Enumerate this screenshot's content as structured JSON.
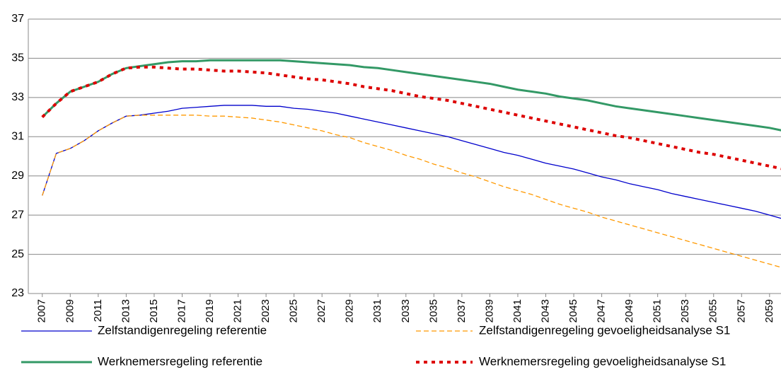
{
  "chart_data": {
    "type": "line",
    "x": [
      2007,
      2008,
      2009,
      2010,
      2011,
      2012,
      2013,
      2014,
      2015,
      2016,
      2017,
      2018,
      2019,
      2020,
      2021,
      2022,
      2023,
      2024,
      2025,
      2026,
      2027,
      2028,
      2029,
      2030,
      2031,
      2032,
      2033,
      2034,
      2035,
      2036,
      2037,
      2038,
      2039,
      2040,
      2041,
      2042,
      2043,
      2044,
      2045,
      2046,
      2047,
      2048,
      2049,
      2050,
      2051,
      2052,
      2053,
      2054,
      2055,
      2056,
      2057,
      2058,
      2059,
      2060
    ],
    "xlim": [
      2006,
      2060
    ],
    "xticks": [
      2007,
      2009,
      2011,
      2013,
      2015,
      2017,
      2019,
      2021,
      2023,
      2025,
      2027,
      2029,
      2031,
      2033,
      2035,
      2037,
      2039,
      2041,
      2043,
      2045,
      2047,
      2049,
      2051,
      2053,
      2055,
      2057,
      2059
    ],
    "ylim": [
      23,
      37
    ],
    "yticks": [
      23,
      25,
      27,
      29,
      31,
      33,
      35,
      37
    ],
    "grid": true,
    "legend": "bottom",
    "series": [
      {
        "name": "Zelfstandigenregeling referentie",
        "color": "#0000cc",
        "style": "solid",
        "values": [
          28.0,
          30.15,
          30.4,
          30.8,
          31.3,
          31.7,
          32.05,
          32.1,
          32.2,
          32.3,
          32.45,
          32.5,
          32.55,
          32.6,
          32.6,
          32.6,
          32.55,
          32.55,
          32.45,
          32.4,
          32.3,
          32.2,
          32.05,
          31.9,
          31.75,
          31.6,
          31.45,
          31.3,
          31.15,
          31.0,
          30.8,
          30.6,
          30.4,
          30.2,
          30.05,
          29.85,
          29.65,
          29.5,
          29.35,
          29.15,
          28.95,
          28.8,
          28.6,
          28.45,
          28.3,
          28.1,
          27.95,
          27.8,
          27.65,
          27.5,
          27.35,
          27.2,
          27.0,
          26.8
        ]
      },
      {
        "name": "Zelfstandigenregeling gevoeligheidsanalyse S1",
        "color": "#ff9900",
        "style": "dashed",
        "values": [
          28.0,
          30.15,
          30.4,
          30.8,
          31.3,
          31.7,
          32.05,
          32.1,
          32.1,
          32.1,
          32.1,
          32.1,
          32.05,
          32.05,
          32.0,
          31.95,
          31.85,
          31.75,
          31.6,
          31.45,
          31.3,
          31.1,
          30.95,
          30.7,
          30.5,
          30.3,
          30.05,
          29.85,
          29.6,
          29.4,
          29.15,
          28.95,
          28.7,
          28.45,
          28.25,
          28.05,
          27.8,
          27.55,
          27.35,
          27.15,
          26.9,
          26.7,
          26.5,
          26.3,
          26.1,
          25.9,
          25.7,
          25.5,
          25.3,
          25.1,
          24.9,
          24.7,
          24.5,
          24.3
        ]
      },
      {
        "name": "Werknemersregeling referentie",
        "color": "#339966",
        "style": "thick",
        "values": [
          32.0,
          32.7,
          33.3,
          33.55,
          33.8,
          34.2,
          34.5,
          34.6,
          34.7,
          34.8,
          34.85,
          34.85,
          34.9,
          34.9,
          34.9,
          34.9,
          34.9,
          34.9,
          34.85,
          34.8,
          34.75,
          34.7,
          34.65,
          34.55,
          34.5,
          34.4,
          34.3,
          34.2,
          34.1,
          34.0,
          33.9,
          33.8,
          33.7,
          33.55,
          33.4,
          33.3,
          33.2,
          33.05,
          32.95,
          32.85,
          32.7,
          32.55,
          32.45,
          32.35,
          32.25,
          32.15,
          32.05,
          31.95,
          31.85,
          31.75,
          31.65,
          31.55,
          31.45,
          31.3
        ]
      },
      {
        "name": "Werknemersregeling gevoeligheidsanalyse S1",
        "color": "#dd0000",
        "style": "dotted",
        "values": [
          32.0,
          32.7,
          33.3,
          33.55,
          33.8,
          34.2,
          34.5,
          34.55,
          34.55,
          34.5,
          34.45,
          34.45,
          34.4,
          34.35,
          34.35,
          34.3,
          34.25,
          34.15,
          34.05,
          33.95,
          33.9,
          33.8,
          33.7,
          33.55,
          33.45,
          33.35,
          33.2,
          33.05,
          32.95,
          32.85,
          32.7,
          32.55,
          32.4,
          32.25,
          32.1,
          31.95,
          31.8,
          31.65,
          31.5,
          31.35,
          31.2,
          31.05,
          30.95,
          30.8,
          30.65,
          30.5,
          30.35,
          30.2,
          30.1,
          29.95,
          29.8,
          29.65,
          29.5,
          29.35
        ]
      }
    ]
  }
}
